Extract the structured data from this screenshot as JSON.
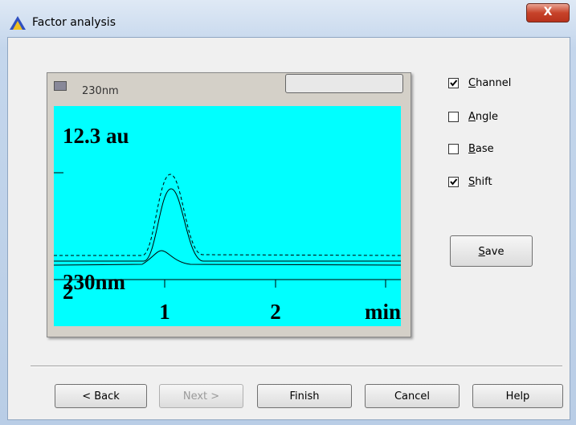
{
  "window": {
    "title": "Factor analysis"
  },
  "inner_window": {
    "title": "230nm",
    "plot": {
      "y_label": "12.3 au",
      "trace_label": "230nm",
      "trace_number": "2",
      "x_labels": [
        "1",
        "2",
        "min"
      ]
    }
  },
  "options": [
    {
      "label": "Channel",
      "checked": true
    },
    {
      "label": "Angle",
      "checked": false
    },
    {
      "label": "Base",
      "checked": false
    },
    {
      "label": "Shift",
      "checked": true
    }
  ],
  "save_button": "Save",
  "buttons": [
    {
      "label": "< Back",
      "enabled": true
    },
    {
      "label": "Next >",
      "enabled": false
    },
    {
      "label": "Finish",
      "enabled": true
    },
    {
      "label": "Cancel",
      "enabled": true
    },
    {
      "label": "Help",
      "enabled": true
    }
  ]
}
